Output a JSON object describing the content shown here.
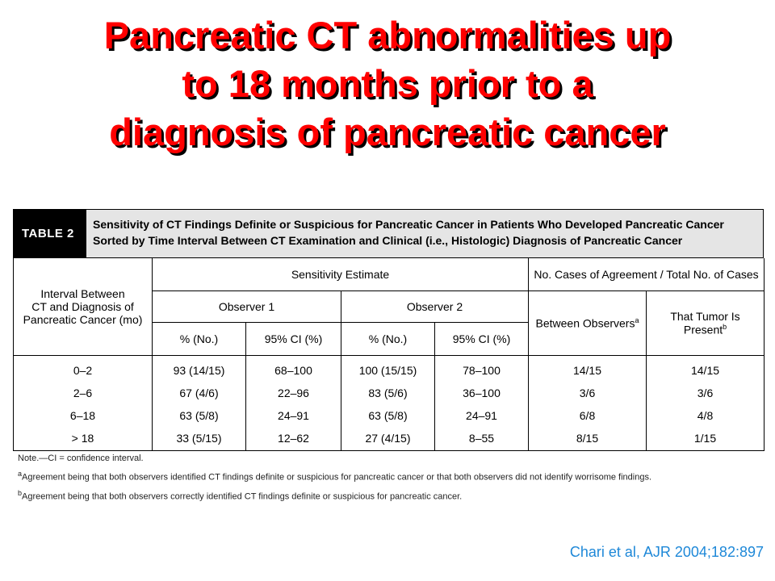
{
  "title_lines": [
    "Pancreatic CT abnormalities up",
    "to 18 months prior to a",
    "diagnosis of pancreatic cancer"
  ],
  "table": {
    "label": "TABLE 2",
    "caption_lines": [
      "Sensitivity of CT Findings Definite or Suspicious for Pancreatic Cancer in Patients Who Developed Pancreatic Cancer",
      "Sorted by Time Interval Between CT Examination and Clinical (i.e., Histologic) Diagnosis of Pancreatic Cancer"
    ],
    "headers": {
      "interval": [
        "Interval Between",
        "CT and Diagnosis of",
        "Pancreatic Cancer (mo)"
      ],
      "sensitivity": "Sensitivity Estimate",
      "cases": "No. Cases of Agreement / Total No. of Cases",
      "observer1": "Observer 1",
      "observer2": "Observer 2",
      "between": "Between Observers",
      "between_sup": "a",
      "tumor": "That Tumor Is Present",
      "tumor_sup": "b",
      "pct": "% (No.)",
      "ci": "95% CI (%)"
    },
    "columns": {
      "interval": [
        "0–2",
        "2–6",
        "6–18",
        "> 18"
      ],
      "obs1_pct": [
        "93 (14/15)",
        "67 (4/6)",
        "63 (5/8)",
        "33 (5/15)"
      ],
      "obs1_ci": [
        "68–100",
        "22–96",
        "24–91",
        "12–62"
      ],
      "obs2_pct": [
        "100 (15/15)",
        "83 (5/6)",
        "63 (5/8)",
        "27 (4/15)"
      ],
      "obs2_ci": [
        "78–100",
        "36–100",
        "24–91",
        "8–55"
      ],
      "between": [
        "14/15",
        "3/6",
        "6/8",
        "8/15"
      ],
      "tumor": [
        "14/15",
        "3/6",
        "4/8",
        "1/15"
      ]
    },
    "notes": {
      "note": "Note.—CI = confidence interval.",
      "a_mark": "a",
      "a_text": "Agreement being that both observers identified CT findings definite or suspicious for pancreatic cancer or that both observers did not identify worrisome findings.",
      "b_mark": "b",
      "b_text": "Agreement being that both observers correctly identified CT findings definite or suspicious for pancreatic cancer."
    }
  },
  "citation": "Chari et al, AJR 2004;182:897",
  "colors": {
    "title": "#ff0000",
    "title_shadow": "#000000",
    "citation": "#1e88d8",
    "caption_bg": "#e5e5e5",
    "label_bg": "#000000"
  }
}
